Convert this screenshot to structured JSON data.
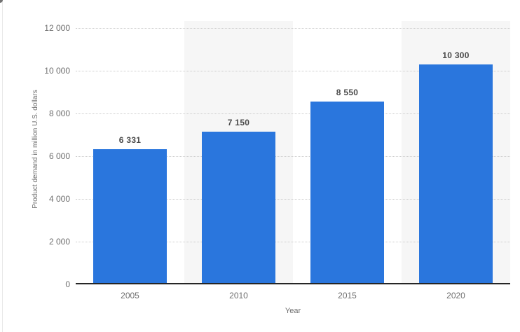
{
  "chart_data": {
    "type": "bar",
    "categories": [
      "2005",
      "2010",
      "2015",
      "2020"
    ],
    "values": [
      6331,
      7150,
      8550,
      10300
    ],
    "value_labels": [
      "6 331",
      "7 150",
      "8 550",
      "10 300"
    ],
    "title": "",
    "xlabel": "Year",
    "ylabel": "Product demand in million U.S. dollars",
    "ylim": [
      0,
      12000
    ],
    "ytick_step": 2000,
    "ytick_labels": [
      "0",
      "2 000",
      "4 000",
      "6 000",
      "8 000",
      "10 000",
      "12 000"
    ],
    "grid": "horizontal-dotted",
    "legend": "none",
    "colors": {
      "bar": "#2a76dd",
      "column_band": "#f6f6f6",
      "gridline": "#cccccc",
      "axis_line": "#262626",
      "tick_text": "#6e6e6e",
      "data_label": "#4a4a4a"
    },
    "layout_hints": {
      "alternating_column_bands": [
        1,
        3
      ],
      "data_labels_above_bars": true
    }
  }
}
